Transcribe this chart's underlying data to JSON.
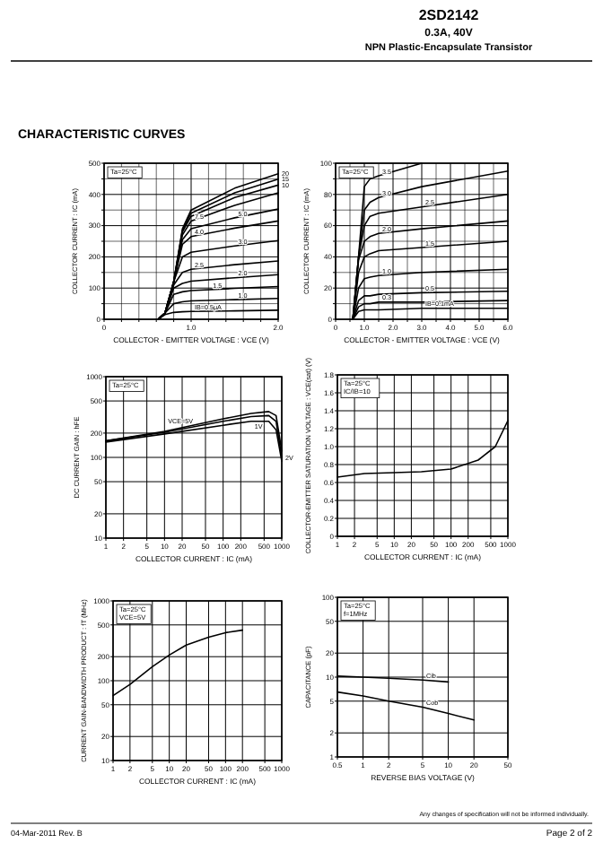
{
  "chart_data": [
    {
      "type": "other",
      "title": "2SD2142",
      "subtitle": "0.3A, 40V",
      "annotations": [
        "NPN Plastic-Encapsulate Transistor",
        "CHARACTERISTIC CURVES"
      ]
    },
    {
      "type": "line",
      "xlabel": "COLLECTOR - EMITTER VOLTAGE : VCE (V)",
      "ylabel": "COLLECTOR CURRENT : IC (mA)",
      "annotations": [
        "Ta=25°C"
      ],
      "grid": true,
      "xlim": [
        0,
        2
      ],
      "ylim": [
        0,
        500
      ],
      "xticks": [
        0,
        {
          "value": 0.2,
          "label": null
        },
        {
          "value": 0.4,
          "label": null
        },
        {
          "value": 0.6,
          "label": null
        },
        {
          "value": 0.8,
          "label": null
        },
        {
          "value": 1,
          "label": "1.0"
        },
        {
          "value": 1.2,
          "label": null
        },
        {
          "value": 1.4,
          "label": null
        },
        {
          "value": 1.6,
          "label": null
        },
        {
          "value": 1.8,
          "label": null
        },
        {
          "value": 2,
          "label": "2.0"
        }
      ],
      "yticks": [
        0,
        {
          "value": 50,
          "label": null
        },
        100,
        {
          "value": 150,
          "label": null
        },
        200,
        {
          "value": 250,
          "label": null
        },
        300,
        {
          "value": 350,
          "label": null
        },
        400,
        {
          "value": 450,
          "label": null
        },
        500
      ],
      "x": [
        0.62,
        0.7,
        0.8,
        0.9,
        1.0,
        1.5,
        2.0
      ],
      "series": [
        {
          "name": "20",
          "color": "#000000",
          "values": [
            0,
            20,
            120,
            290,
            350,
            420,
            466
          ]
        },
        {
          "name": "15",
          "color": "#000000",
          "values": [
            0,
            20,
            120,
            285,
            340,
            405,
            449
          ]
        },
        {
          "name": "10",
          "color": "#000000",
          "values": [
            0,
            20,
            120,
            280,
            330,
            390,
            430
          ]
        },
        {
          "name": "7.5",
          "color": "#000000",
          "values": [
            0,
            20,
            120,
            270,
            315,
            365,
            405
          ]
        },
        {
          "name": "5.0",
          "color": "#000000",
          "values": [
            0,
            20,
            120,
            255,
            290,
            325,
            353
          ]
        },
        {
          "name": "4.0",
          "color": "#000000",
          "values": [
            0,
            20,
            120,
            240,
            265,
            292,
            315
          ]
        },
        {
          "name": "3.0",
          "color": "#000000",
          "values": [
            0,
            20,
            120,
            200,
            215,
            235,
            252
          ]
        },
        {
          "name": "2.5",
          "color": "#000000",
          "values": [
            0,
            20,
            110,
            150,
            160,
            175,
            187
          ]
        },
        {
          "name": "2.0",
          "color": "#000000",
          "values": [
            0,
            20,
            100,
            115,
            122,
            133,
            143
          ]
        },
        {
          "name": "1.5",
          "color": "#000000",
          "values": [
            0,
            20,
            80,
            88,
            92,
            99,
            105
          ]
        },
        {
          "name": "1.0",
          "color": "#000000",
          "values": [
            0,
            20,
            50,
            56,
            59,
            63,
            67
          ]
        },
        {
          "name": "IB=0.5μA",
          "color": "#000000",
          "values": [
            0,
            15,
            22,
            24,
            25,
            27,
            29
          ]
        }
      ]
    },
    {
      "type": "line",
      "xlabel": "COLLECTOR - EMITTER VOLTAGE : VCE (V)",
      "ylabel": "COLLECTOR CURRENT : IC (mA)",
      "annotations": [
        "Ta=25°C"
      ],
      "grid": true,
      "xlim": [
        0,
        6
      ],
      "ylim": [
        0,
        100
      ],
      "xticks": [
        0,
        {
          "value": 0.5,
          "label": null
        },
        {
          "value": 1,
          "label": "1.0"
        },
        {
          "value": 1.5,
          "label": null
        },
        {
          "value": 2,
          "label": "2.0"
        },
        {
          "value": 2.5,
          "label": null
        },
        {
          "value": 3,
          "label": "3.0"
        },
        {
          "value": 3.5,
          "label": null
        },
        {
          "value": 4,
          "label": "4.0"
        },
        {
          "value": 4.5,
          "label": null
        },
        {
          "value": 5,
          "label": "5.0"
        },
        {
          "value": 5.5,
          "label": null
        },
        {
          "value": 6,
          "label": "6.0"
        }
      ],
      "yticks": [
        0,
        {
          "value": 10,
          "label": null
        },
        20,
        {
          "value": 30,
          "label": null
        },
        40,
        {
          "value": 50,
          "label": null
        },
        60,
        {
          "value": 70,
          "label": null
        },
        80,
        {
          "value": 90,
          "label": null
        },
        100
      ],
      "x": [
        0.6,
        0.8,
        1.0,
        1.2,
        1.5,
        3.0,
        6.0
      ],
      "series": [
        {
          "name": "3.5",
          "color": "#000000",
          "values": [
            0,
            40,
            85,
            90,
            92,
            100,
            null
          ]
        },
        {
          "name": "3.0",
          "color": "#000000",
          "values": [
            0,
            40,
            70,
            75,
            78,
            85,
            95
          ]
        },
        {
          "name": "2.5",
          "color": "#000000",
          "values": [
            0,
            40,
            60,
            66,
            68,
            72,
            80
          ]
        },
        {
          "name": "2.0",
          "color": "#000000",
          "values": [
            0,
            38,
            50,
            53,
            55,
            58,
            63
          ]
        },
        {
          "name": "1.5",
          "color": "#000000",
          "values": [
            0,
            30,
            40,
            42,
            44,
            46,
            50
          ]
        },
        {
          "name": "1.0",
          "color": "#000000",
          "values": [
            0,
            20,
            26,
            27,
            28,
            30,
            32
          ]
        },
        {
          "name": "0.5",
          "color": "#000000",
          "values": [
            0,
            12,
            15,
            15,
            16,
            17,
            18
          ]
        },
        {
          "name": "0.3",
          "color": "#000000",
          "values": [
            0,
            8,
            10,
            10,
            11,
            11,
            12
          ]
        },
        {
          "name": "IB=0.1mA",
          "color": "#000000",
          "values": [
            0,
            5,
            6,
            6,
            6,
            7,
            7
          ]
        }
      ]
    },
    {
      "type": "line",
      "xlabel": "COLLECTOR CURRENT : IC (mA)",
      "ylabel": "DC CURRENT GAIN : hFE",
      "annotations": [
        "Ta=25°C"
      ],
      "grid": true,
      "log": "xy",
      "xlim": [
        1,
        1000
      ],
      "ylim": [
        10,
        1000
      ],
      "xticks": [
        1,
        2,
        5,
        10,
        20,
        50,
        100,
        200,
        500,
        1000
      ],
      "yticks": [
        10,
        20,
        50,
        100,
        200,
        500,
        1000
      ],
      "x": [
        1,
        10,
        100,
        300,
        600,
        800,
        1000
      ],
      "series": [
        {
          "name": "VCE=5V",
          "color": "#000000",
          "values": [
            160,
            210,
            300,
            350,
            370,
            330,
            120
          ]
        },
        {
          "name": "2V",
          "color": "#000000",
          "values": [
            160,
            205,
            280,
            320,
            330,
            280,
            100
          ]
        },
        {
          "name": "1V",
          "color": "#000000",
          "values": [
            155,
            195,
            250,
            280,
            280,
            220,
            90
          ]
        }
      ]
    },
    {
      "type": "line",
      "xlabel": "COLLECTOR CURRENT : IC (mA)",
      "ylabel": "COLLECTOR-EMITTER SATURATION VOLTAGE : VCE(sat) (V)",
      "annotations": [
        "Ta=25°C",
        "IC/IB=10"
      ],
      "grid": true,
      "log": "x",
      "xlim": [
        1,
        1000
      ],
      "ylim": [
        0,
        1.8
      ],
      "xticks": [
        1,
        2,
        5,
        10,
        20,
        50,
        100,
        200,
        500,
        1000
      ],
      "yticks": [
        0,
        0.2,
        0.4,
        0.6,
        0.8,
        {
          "value": 1,
          "label": "1.0"
        },
        1.2,
        1.4,
        1.6,
        1.8
      ],
      "x": [
        1,
        3,
        10,
        30,
        100,
        300,
        600,
        1000
      ],
      "series": [
        {
          "color": "#000000",
          "values": [
            0.66,
            0.7,
            0.71,
            0.72,
            0.75,
            0.85,
            1.0,
            1.29
          ]
        }
      ]
    },
    {
      "type": "line",
      "xlabel": "COLLECTOR CURRENT : IC (mA)",
      "ylabel": "CURRENT GAIN-BANDWIDTH PRODUCT : fT (MHz)",
      "annotations": [
        "Ta=25°C",
        "VCE=5V"
      ],
      "grid": true,
      "log": "xy",
      "xlim": [
        1,
        1000
      ],
      "ylim": [
        10,
        1000
      ],
      "xticks": [
        1,
        2,
        5,
        10,
        20,
        50,
        100,
        200,
        500,
        1000
      ],
      "yticks": [
        10,
        20,
        50,
        100,
        200,
        500,
        1000
      ],
      "x": [
        1,
        2,
        5,
        10,
        20,
        50,
        100,
        200
      ],
      "series": [
        {
          "color": "#000000",
          "values": [
            65,
            90,
            150,
            210,
            280,
            350,
            400,
            430
          ]
        }
      ]
    },
    {
      "type": "line",
      "xlabel": "REVERSE BIAS VOLTAGE (V)",
      "ylabel": "CAPACITANCE (pF)",
      "annotations": [
        "Ta=25°C",
        "f=1MHz"
      ],
      "grid": true,
      "log": "xy",
      "xlim": [
        0.5,
        50
      ],
      "ylim": [
        1,
        100
      ],
      "xticks": [
        0.5,
        1,
        2,
        5,
        10,
        20,
        50
      ],
      "yticks": [
        1,
        2,
        5,
        10,
        20,
        50,
        100
      ],
      "series": [
        {
          "name": "Cib",
          "color": "#000000",
          "x": [
            0.5,
            1,
            2,
            5,
            10
          ],
          "values": [
            10.3,
            10,
            9.7,
            9.2,
            8.7
          ]
        },
        {
          "name": "Cob",
          "color": "#000000",
          "x": [
            0.5,
            1,
            2,
            5,
            10,
            20
          ],
          "values": [
            6.5,
            5.8,
            5,
            4.2,
            3.5,
            2.9
          ]
        }
      ]
    },
    {
      "type": "other",
      "annotations": [
        "Any changes of specification will not be informed individually.",
        "04-Mar-2011 Rev. B",
        "Page 2 of 2"
      ]
    }
  ]
}
